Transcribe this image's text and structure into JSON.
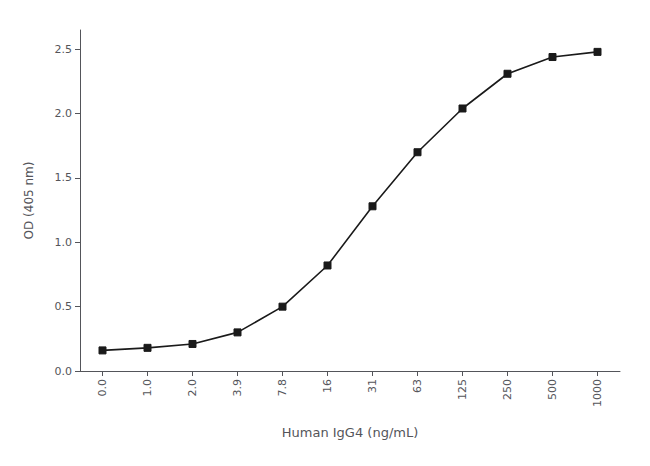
{
  "chart_data": {
    "type": "line",
    "categories": [
      "0.0",
      "1.0",
      "2.0",
      "3.9",
      "7.8",
      "16",
      "31",
      "63",
      "125",
      "250",
      "500",
      "1000"
    ],
    "values": [
      0.16,
      0.18,
      0.21,
      0.3,
      0.5,
      0.82,
      1.28,
      1.7,
      2.04,
      2.31,
      2.44,
      2.48
    ],
    "xlabel": "Human IgG4 (ng/mL)",
    "ylabel": "OD (405 nm)",
    "ylim": [
      0.0,
      2.65
    ],
    "yticks": [
      {
        "value": 0,
        "label": "0.0"
      },
      0.5,
      {
        "value": 1,
        "label": "1.0"
      },
      1.5,
      {
        "value": 2,
        "label": "2.0"
      },
      2.5
    ],
    "color": "#1a1a1a",
    "marker": "square",
    "grid": false
  }
}
